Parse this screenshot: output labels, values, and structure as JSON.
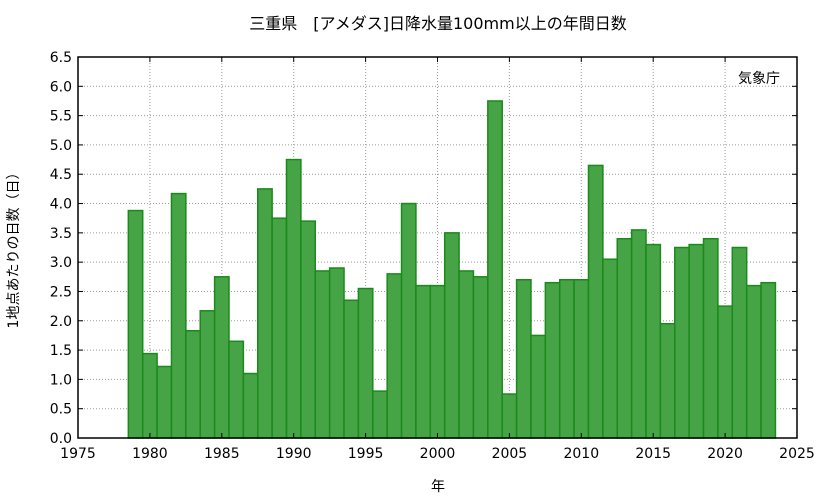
{
  "chart_data": {
    "type": "bar",
    "title": "三重県　[アメダス]日降水量100mm以上の年間日数",
    "xlabel": "年",
    "ylabel": "1地点あたりの日数（日）",
    "source": "気象庁",
    "xlim": [
      1975,
      2025
    ],
    "ylim": [
      0,
      6.5
    ],
    "x_ticks": [
      1975,
      1980,
      1985,
      1990,
      1995,
      2000,
      2005,
      2010,
      2015,
      2020,
      2025
    ],
    "y_ticks": [
      "0.0",
      "0.5",
      "1.0",
      "1.5",
      "2.0",
      "2.5",
      "3.0",
      "3.5",
      "4.0",
      "4.5",
      "5.0",
      "5.5",
      "6.0",
      "6.5"
    ],
    "grid": true,
    "bar_color": "#46a446",
    "bar_edge_color": "#1a8a1a",
    "x": [
      1979,
      1980,
      1981,
      1982,
      1983,
      1984,
      1985,
      1986,
      1987,
      1988,
      1989,
      1990,
      1991,
      1992,
      1993,
      1994,
      1995,
      1996,
      1997,
      1998,
      1999,
      2000,
      2001,
      2002,
      2003,
      2004,
      2005,
      2006,
      2007,
      2008,
      2009,
      2010,
      2011,
      2012,
      2013,
      2014,
      2015,
      2016,
      2017,
      2018,
      2019,
      2020,
      2021,
      2022,
      2023
    ],
    "values": [
      3.88,
      1.44,
      1.22,
      4.17,
      1.83,
      2.17,
      2.75,
      1.65,
      1.1,
      4.25,
      3.75,
      4.75,
      3.7,
      2.85,
      2.9,
      2.35,
      2.55,
      0.8,
      2.8,
      4.0,
      2.6,
      2.6,
      3.5,
      2.85,
      2.75,
      5.75,
      0.75,
      2.7,
      1.75,
      2.65,
      2.7,
      2.7,
      4.65,
      3.05,
      3.4,
      3.55,
      3.3,
      1.95,
      3.25,
      3.3,
      3.4,
      2.25,
      3.25,
      2.6,
      2.65
    ]
  }
}
